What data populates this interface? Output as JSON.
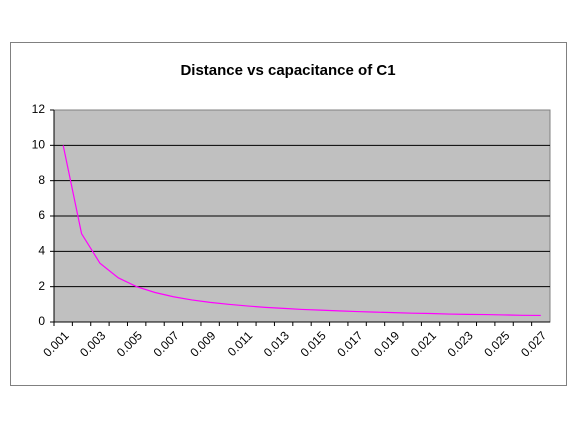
{
  "chart_data": {
    "type": "line",
    "title": "Distance vs capacitance of C1",
    "categories": [
      "0.001",
      null,
      "0.003",
      null,
      "0.005",
      null,
      "0.007",
      null,
      "0.009",
      null,
      "0.011",
      null,
      "0.013",
      null,
      "0.015",
      null,
      "0.017",
      null,
      "0.019",
      null,
      "0.021",
      null,
      "0.023",
      null,
      "0.025",
      null,
      "0.027"
    ],
    "values": [
      10,
      5,
      3.33,
      2.5,
      2,
      1.67,
      1.43,
      1.25,
      1.11,
      1,
      0.91,
      0.83,
      0.77,
      0.71,
      0.67,
      0.63,
      0.59,
      0.56,
      0.53,
      0.5,
      0.48,
      0.45,
      0.43,
      0.42,
      0.4,
      0.38,
      0.37
    ],
    "color": "#ff00ff",
    "ylim": [
      0,
      12
    ],
    "yticks": [
      0,
      2,
      4,
      6,
      8,
      10,
      12
    ],
    "grid": true
  }
}
